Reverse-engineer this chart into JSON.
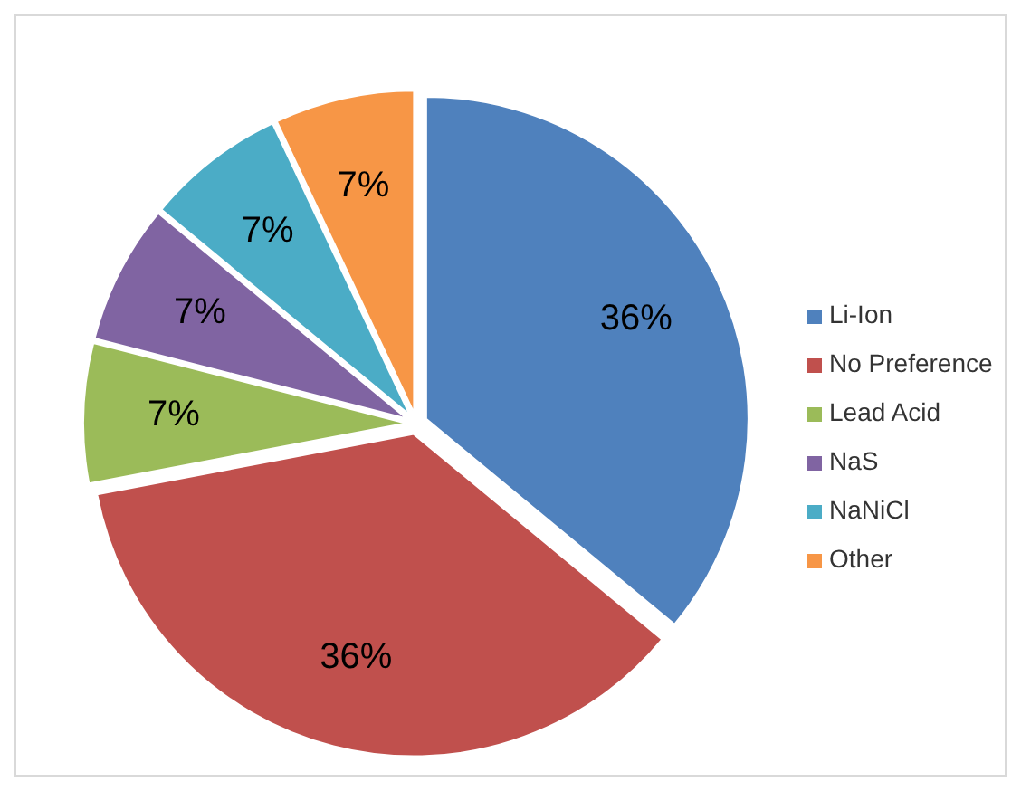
{
  "chart_data": {
    "type": "pie",
    "categories": [
      "Li-Ion",
      "No Preference",
      "Lead Acid",
      "NaS",
      "NaNiCl",
      "Other"
    ],
    "values": [
      36,
      36,
      7,
      7,
      7,
      7
    ],
    "colors": [
      "#4f81bd",
      "#c0504d",
      "#9bbb59",
      "#8064a2",
      "#4bacc6",
      "#f79646"
    ],
    "value_labels": [
      "36%",
      "36%",
      "7%",
      "7%",
      "7%",
      "7%"
    ],
    "legend": "right"
  }
}
